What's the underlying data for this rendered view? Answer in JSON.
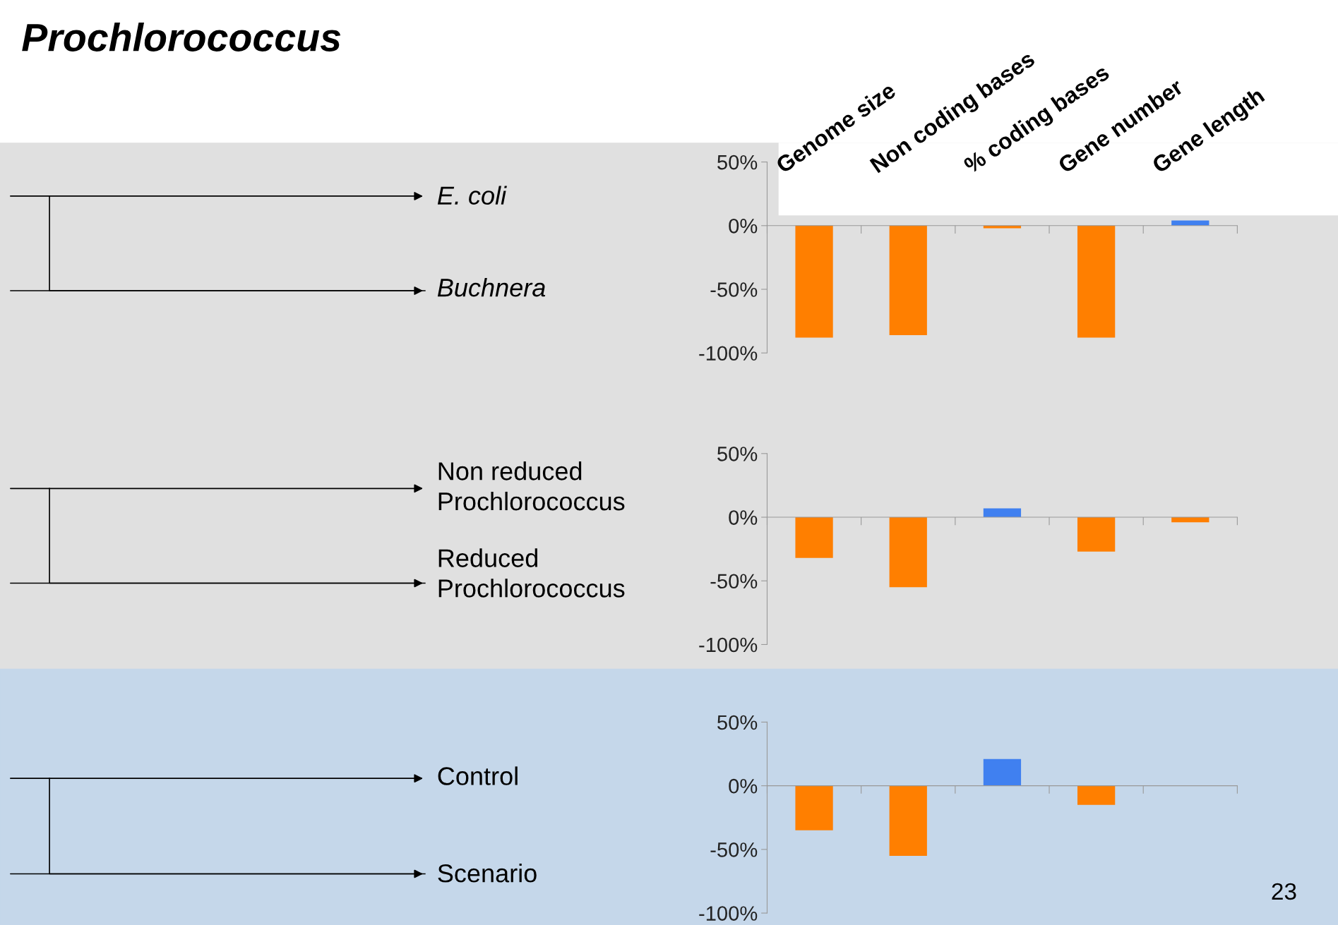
{
  "chart_data": [
    {
      "type": "bar",
      "categories": [
        "Genome size",
        "Non coding bases",
        "% coding bases",
        "Gene number",
        "Gene length"
      ],
      "values": [
        -88,
        -86,
        -2,
        -88,
        4
      ],
      "colors": [
        "#ff7f00",
        "#ff7f00",
        "#ff7f00",
        "#ff7f00",
        "#4080f0"
      ],
      "ylim": [
        -100,
        50
      ],
      "yticks": [
        {
          "value": -100,
          "label": "-100%"
        },
        {
          "value": -50,
          "label": "-50%"
        },
        {
          "value": 0,
          "label": "0%"
        },
        {
          "value": 50,
          "label": "50%"
        }
      ],
      "grid": false,
      "legend": false,
      "annotations": [
        "E. coli",
        "Buchnera",
        "Prochlorococcus"
      ]
    },
    {
      "type": "bar",
      "categories": [
        null,
        null,
        null,
        null,
        null
      ],
      "values": [
        -32,
        -55,
        7,
        -27,
        -4
      ],
      "colors": [
        "#ff7f00",
        "#ff7f00",
        "#4080f0",
        "#ff7f00",
        "#ff7f00"
      ],
      "ylim": [
        -100,
        50
      ],
      "yticks": [
        {
          "value": -100,
          "label": "-100%"
        },
        {
          "value": -50,
          "label": "-50%"
        },
        {
          "value": 0,
          "label": "0%"
        },
        {
          "value": 50,
          "label": "50%"
        }
      ],
      "legend": false,
      "tick_labels": "y",
      "annotations": [
        "Non reduced Prochlorococcus",
        "Reduced Prochlorococcus"
      ]
    },
    {
      "type": "bar",
      "categories": [
        null,
        null,
        null,
        null,
        null
      ],
      "values": [
        -35,
        -55,
        21,
        -15,
        null
      ],
      "colors": [
        "#ff7f00",
        "#ff7f00",
        "#4080f0",
        "#ff7f00",
        "#4080f0"
      ],
      "ylim": [
        -100,
        50
      ],
      "yticks": [
        {
          "value": -100,
          "label": "-100%"
        },
        {
          "value": -50,
          "label": "-50%"
        },
        {
          "value": 0,
          "label": "0%"
        },
        {
          "value": 50,
          "label": "50%"
        }
      ],
      "legend": false,
      "tick_labels": "y",
      "annotations": [
        "Control",
        "Scenario",
        "23"
      ]
    }
  ]
}
